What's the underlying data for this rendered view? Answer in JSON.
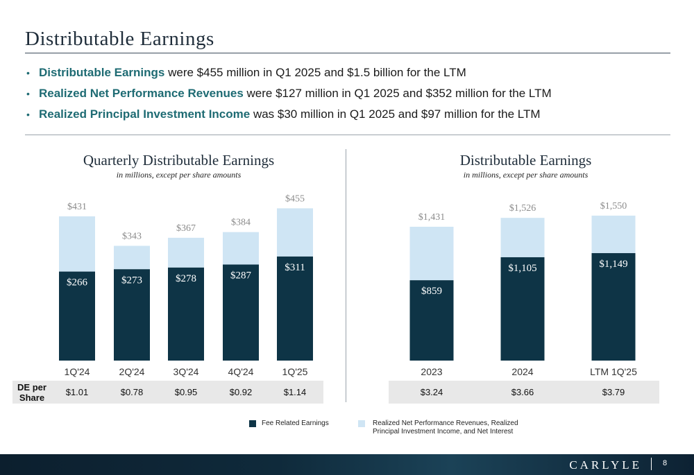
{
  "header": {
    "title": "Distributable Earnings"
  },
  "bullets": [
    {
      "highlight": "Distributable Earnings",
      "text": " were $455 million in Q1 2025 and $1.5 billion for the LTM"
    },
    {
      "highlight": "Realized Net Performance Revenues",
      "text": " were $127 million in Q1 2025 and $352 million for the LTM"
    },
    {
      "highlight": "Realized Principal Investment Income",
      "text": " was $30 million in Q1 2025 and $97 million for the LTM"
    }
  ],
  "colors": {
    "fre": "#0e3446",
    "other": "#cfe5f4",
    "accent": "#1e6b73"
  },
  "chart_data": [
    {
      "type": "bar",
      "stacked": true,
      "title": "Quarterly Distributable Earnings",
      "subtitle": "in millions, except per share amounts",
      "categories": [
        "1Q'24",
        "2Q'24",
        "3Q'24",
        "4Q'24",
        "1Q'25"
      ],
      "totals": [
        "$431",
        "$343",
        "$367",
        "$384",
        "$455"
      ],
      "series": [
        {
          "name": "Fee Related Earnings",
          "values": [
            266,
            273,
            278,
            287,
            311
          ],
          "labels": [
            "$266",
            "$273",
            "$278",
            "$287",
            "$311"
          ]
        },
        {
          "name": "Realized Net Performance Revenues, Realized Principal Investment Income, and Net Interest",
          "values": [
            165,
            70,
            89,
            97,
            144
          ]
        }
      ],
      "total_values": [
        431,
        343,
        367,
        384,
        455
      ],
      "ylim": [
        0,
        460
      ],
      "de_per_share": [
        "$1.01",
        "$0.78",
        "$0.95",
        "$0.92",
        "$1.14"
      ]
    },
    {
      "type": "bar",
      "stacked": true,
      "title": "Distributable Earnings",
      "subtitle": "in millions, except per share amounts",
      "categories": [
        "2023",
        "2024",
        "LTM 1Q'25"
      ],
      "totals": [
        "$1,431",
        "$1,526",
        "$1,550"
      ],
      "series": [
        {
          "name": "Fee Related Earnings",
          "values": [
            859,
            1105,
            1149
          ],
          "labels": [
            "$859",
            "$1,105",
            "$1,149"
          ]
        },
        {
          "name": "Realized Net Performance Revenues, Realized Principal Investment Income, and Net Interest",
          "values": [
            572,
            421,
            401
          ]
        }
      ],
      "total_values": [
        1431,
        1526,
        1550
      ],
      "ylim": [
        0,
        1850
      ],
      "de_per_share": [
        "$3.24",
        "$3.66",
        "$3.79"
      ]
    }
  ],
  "table": {
    "de_label": "DE per Share"
  },
  "legend": {
    "fre": "Fee Related Earnings",
    "other": "Realized Net Performance Revenues, Realized Principal Investment Income, and Net Interest"
  },
  "footer": {
    "logo": "CARLYLE",
    "page": "8"
  }
}
